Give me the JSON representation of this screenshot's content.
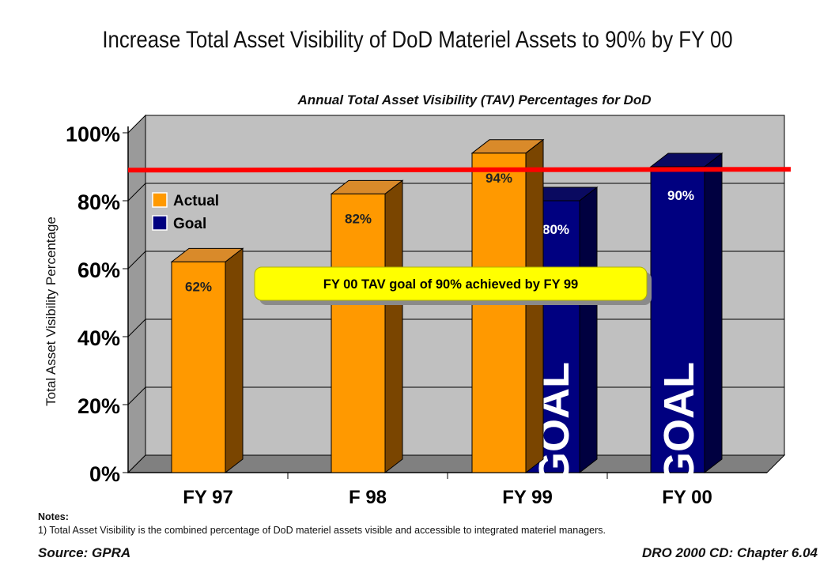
{
  "title": "Increase Total Asset Visibility of DoD Materiel Assets to 90% by FY 00",
  "chart_data": {
    "type": "bar",
    "title": "Annual Total Asset Visibility (TAV) Percentages for DoD",
    "ylabel": "Total Asset Visibility Percentage",
    "xlabel": "",
    "ylim": [
      0,
      100
    ],
    "yticks": [
      "0%",
      "20%",
      "40%",
      "60%",
      "80%",
      "100%"
    ],
    "categories": [
      "FY 97",
      "F 98",
      "FY 99",
      "FY 00"
    ],
    "series": [
      {
        "name": "Actual",
        "color": "#ff9900",
        "values": [
          62,
          82,
          94,
          null
        ],
        "labels": [
          "62%",
          "82%",
          "94%",
          ""
        ]
      },
      {
        "name": "Goal",
        "color": "#000080",
        "values": [
          null,
          null,
          80,
          90
        ],
        "labels": [
          "",
          "",
          "80%",
          "90%"
        ],
        "bar_text": "GOAL"
      }
    ],
    "reference_line": {
      "value": 89,
      "color": "#ff0000"
    },
    "annotation": "FY 00 TAV goal of 90% achieved by FY 99",
    "legend_position": "top-left",
    "grid": true
  },
  "notes": {
    "heading": "Notes:",
    "items": [
      "1)  Total Asset Visibility is the combined percentage of DoD materiel assets visible and accessible to integrated materiel managers."
    ]
  },
  "source": "Source: GPRA",
  "reference": "DRO 2000 CD: Chapter 6.04"
}
